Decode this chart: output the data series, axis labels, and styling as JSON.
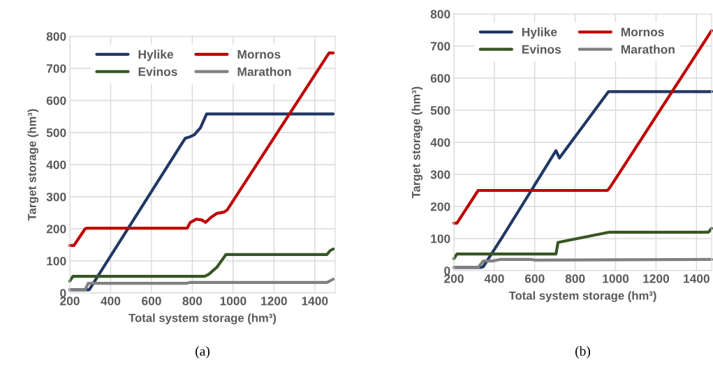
{
  "chart_data": [
    {
      "type": "line",
      "xlabel": "Total system storage (hm³)",
      "ylabel": "Target storage (hm³)",
      "xlim": [
        200,
        1500
      ],
      "xticks": [
        200,
        400,
        600,
        800,
        1000,
        1200,
        1400
      ],
      "ylim": [
        0,
        800
      ],
      "yticks": [
        0,
        100,
        200,
        300,
        400,
        500,
        600,
        700,
        800
      ],
      "grid": true,
      "legend": "top left",
      "annotations": [
        "(a)"
      ],
      "series": [
        {
          "name": "Hylike",
          "color": "#203864",
          "x": [
            200,
            295,
            765,
            790,
            810,
            840,
            870,
            1490
          ],
          "values": [
            10,
            10,
            482,
            487,
            493,
            515,
            558,
            558
          ]
        },
        {
          "name": "Evinos",
          "color": "#375623",
          "x": [
            200,
            215,
            860,
            880,
            920,
            965,
            1460,
            1475,
            1490
          ],
          "values": [
            37,
            52,
            52,
            58,
            80,
            120,
            120,
            132,
            137
          ]
        },
        {
          "name": "Mornos",
          "color": "#c00000",
          "x": [
            200,
            220,
            275,
            285,
            775,
            790,
            820,
            845,
            865,
            890,
            920,
            955,
            970,
            1470,
            1490
          ],
          "values": [
            148,
            148,
            200,
            202,
            202,
            220,
            230,
            228,
            220,
            235,
            248,
            252,
            258,
            748,
            748
          ]
        },
        {
          "name": "Marathon",
          "color": "#808080",
          "x": [
            200,
            275,
            290,
            770,
            790,
            1460,
            1490
          ],
          "values": [
            10,
            10,
            30,
            30,
            33,
            33,
            43
          ]
        }
      ]
    },
    {
      "type": "line",
      "xlabel": "Total system storage (hm³)",
      "ylabel": "Target storage (hm³)",
      "xlim": [
        200,
        1475
      ],
      "xticks": [
        200,
        400,
        600,
        800,
        1000,
        1200,
        1400
      ],
      "ylim": [
        0,
        800
      ],
      "yticks": [
        0,
        100,
        200,
        300,
        400,
        500,
        600,
        700,
        800
      ],
      "grid": true,
      "legend": "top left",
      "annotations": [
        "(b)"
      ],
      "series": [
        {
          "name": "Hylike",
          "color": "#203864",
          "x": [
            200,
            330,
            345,
            440,
            705,
            722,
            965,
            1475
          ],
          "values": [
            10,
            10,
            12,
            105,
            374,
            351,
            558,
            558
          ]
        },
        {
          "name": "Evinos",
          "color": "#375623",
          "x": [
            200,
            215,
            705,
            715,
            970,
            1460,
            1475
          ],
          "values": [
            37,
            52,
            52,
            88,
            120,
            120,
            132
          ]
        },
        {
          "name": "Mornos",
          "color": "#c00000",
          "x": [
            200,
            215,
            320,
            960,
            975,
            1475
          ],
          "values": [
            148,
            148,
            250,
            250,
            262,
            748
          ]
        },
        {
          "name": "Marathon",
          "color": "#808080",
          "x": [
            200,
            320,
            345,
            390,
            430,
            580,
            600,
            1475
          ],
          "values": [
            10,
            10,
            30,
            30,
            35,
            35,
            33,
            35
          ]
        }
      ]
    }
  ]
}
